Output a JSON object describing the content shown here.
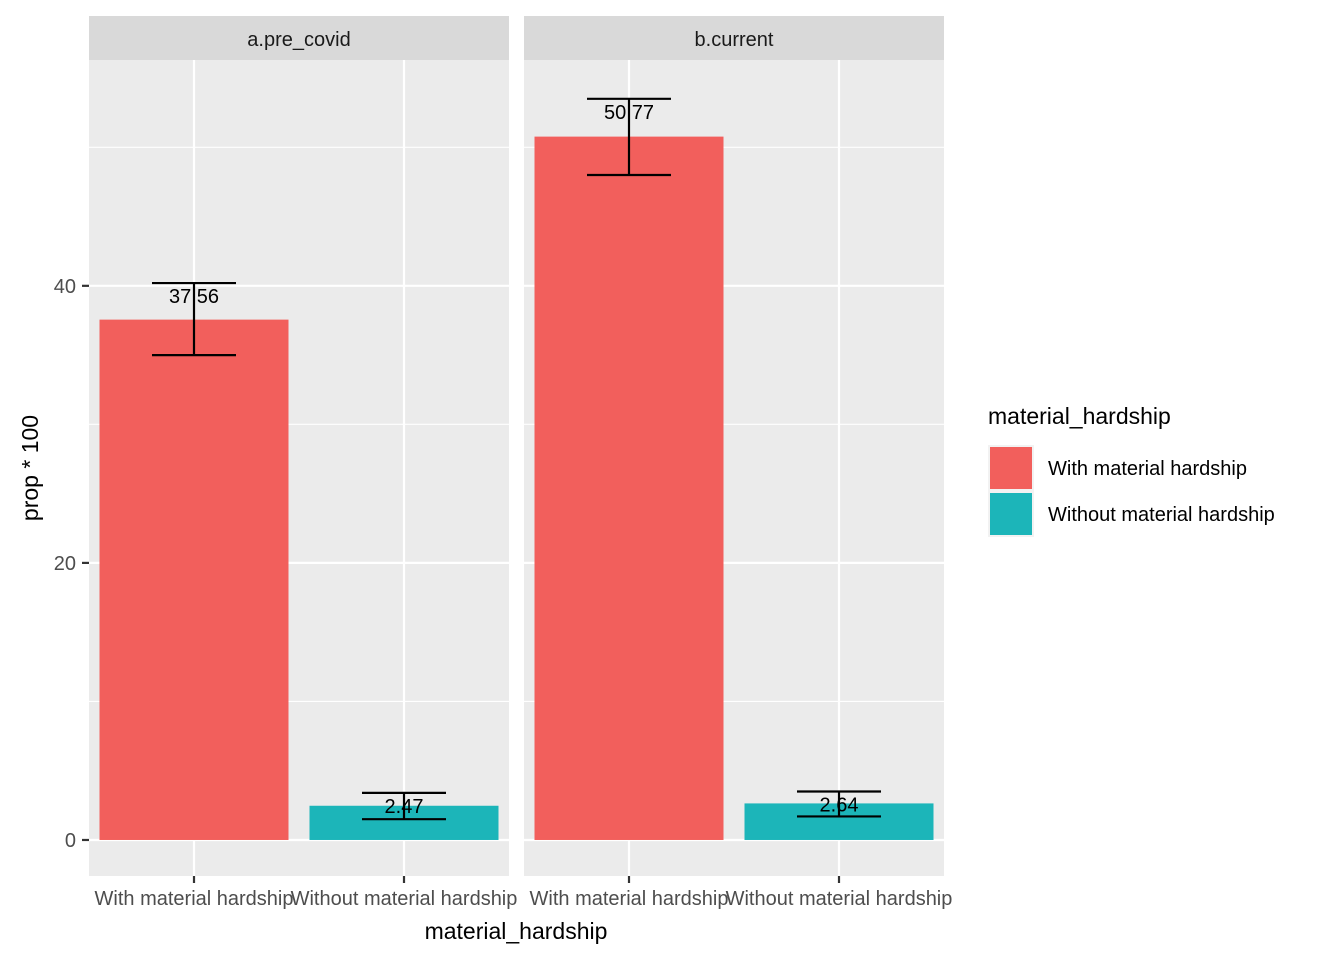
{
  "chart_data": {
    "type": "bar",
    "xlabel": "material_hardship",
    "ylabel": "prop * 100",
    "ylim": [
      -2.6,
      56.3
    ],
    "yticks": [
      0,
      20,
      40
    ],
    "categories": [
      "With material hardship",
      "Without material hardship"
    ],
    "legend": {
      "title": "material_hardship",
      "position": "right",
      "items": [
        {
          "label": "With material hardship",
          "color": "#F8766D"
        },
        {
          "label": "Without material hardship",
          "color": "#00BFC4"
        }
      ]
    },
    "facets": [
      {
        "strip": "a.pre_covid",
        "bars": [
          {
            "category": "With material hardship",
            "value": 37.56,
            "label": "37.56",
            "err_low": 35.0,
            "err_high": 40.2
          },
          {
            "category": "Without material hardship",
            "value": 2.47,
            "label": "2.47",
            "err_low": 1.5,
            "err_high": 3.4
          }
        ]
      },
      {
        "strip": "b.current",
        "bars": [
          {
            "category": "With material hardship",
            "value": 50.77,
            "label": "50.77",
            "err_low": 48.0,
            "err_high": 53.5
          },
          {
            "category": "Without material hardship",
            "value": 2.64,
            "label": "2.64",
            "err_low": 1.7,
            "err_high": 3.5
          }
        ]
      }
    ],
    "grid": true,
    "colors": {
      "panel_bg": "#EBEBEB",
      "strip_bg": "#D9D9D9",
      "grid": "#FFFFFF",
      "text": "#1A1A1A",
      "tick_text": "#4D4D4D",
      "bar_fill_opacity_color_1": "#F25F5C",
      "bar_fill_opacity_color_2": "#1CB5B9"
    }
  }
}
